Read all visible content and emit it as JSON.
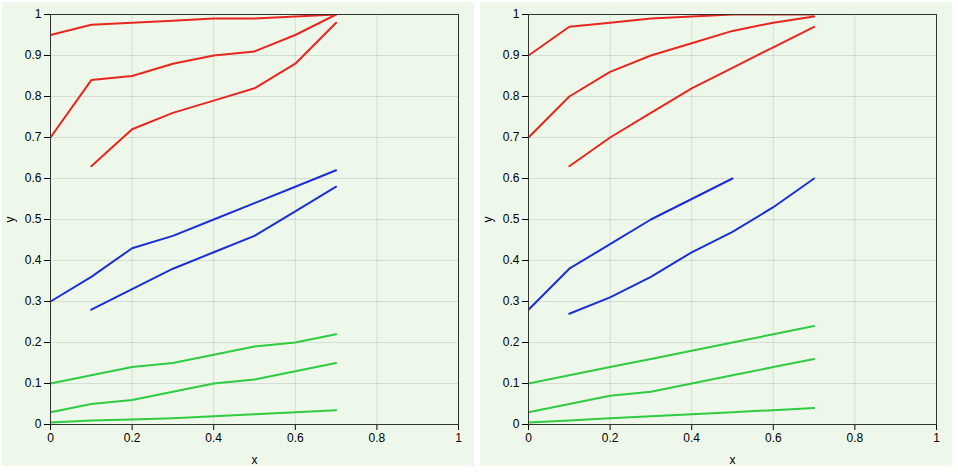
{
  "chart_data": [
    {
      "type": "line",
      "x_label": "x",
      "y_label": "y",
      "x": [
        0,
        0.1,
        0.2,
        0.3,
        0.4,
        0.5,
        0.6,
        0.7
      ],
      "xlim": [
        0,
        1
      ],
      "xticks": [
        0,
        0.2,
        0.4,
        0.6,
        0.8,
        1
      ],
      "ylim": [
        0,
        1
      ],
      "yticks": [
        0,
        0.1,
        0.2,
        0.3,
        0.4,
        0.5,
        0.6,
        0.7,
        0.8,
        0.9,
        1
      ],
      "grid": true,
      "series": [
        {
          "color": "#e8261e",
          "values": [
            0.95,
            0.975,
            0.98,
            0.985,
            0.99,
            0.99,
            0.995,
            1
          ]
        },
        {
          "color": "#e8261e",
          "values": [
            0.7,
            0.84,
            0.85,
            0.88,
            0.9,
            0.91,
            0.95,
            1
          ]
        },
        {
          "color": "#e8261e",
          "values": [
            null,
            0.63,
            0.72,
            0.76,
            0.79,
            0.82,
            0.88,
            0.98
          ]
        },
        {
          "color": "#1a2fd6",
          "values": [
            0.3,
            0.36,
            0.43,
            0.46,
            0.5,
            0.54,
            0.58,
            0.62
          ]
        },
        {
          "color": "#1a2fd6",
          "values": [
            null,
            0.28,
            0.33,
            0.38,
            0.42,
            0.46,
            0.52,
            0.58
          ]
        },
        {
          "color": "#2ecc40",
          "values": [
            0.1,
            0.12,
            0.14,
            0.15,
            0.17,
            0.19,
            0.2,
            0.22
          ]
        },
        {
          "color": "#2ecc40",
          "values": [
            0.03,
            0.05,
            0.06,
            0.08,
            0.1,
            0.11,
            0.13,
            0.15
          ]
        },
        {
          "color": "#2ecc40",
          "values": [
            0.005,
            0.01,
            0.012,
            0.015,
            0.02,
            0.025,
            0.03,
            0.035
          ]
        }
      ]
    },
    {
      "type": "line",
      "x_label": "x",
      "y_label": "y",
      "x": [
        0,
        0.1,
        0.2,
        0.3,
        0.4,
        0.5,
        0.6,
        0.7
      ],
      "xlim": [
        0,
        1
      ],
      "xticks": [
        0,
        0.2,
        0.4,
        0.6,
        0.8,
        1
      ],
      "ylim": [
        0,
        1
      ],
      "yticks": [
        0,
        0.1,
        0.2,
        0.3,
        0.4,
        0.5,
        0.6,
        0.7,
        0.8,
        0.9,
        1
      ],
      "grid": true,
      "series": [
        {
          "color": "#e8261e",
          "values": [
            0.9,
            0.97,
            0.98,
            0.99,
            0.995,
            1,
            1,
            1
          ]
        },
        {
          "color": "#e8261e",
          "values": [
            0.7,
            0.8,
            0.86,
            0.9,
            0.93,
            0.96,
            0.98,
            0.995
          ]
        },
        {
          "color": "#e8261e",
          "values": [
            null,
            0.63,
            0.7,
            0.76,
            0.82,
            0.87,
            0.92,
            0.97
          ]
        },
        {
          "color": "#1a2fd6",
          "values": [
            0.28,
            0.38,
            0.44,
            0.5,
            0.55,
            0.6,
            null,
            null
          ]
        },
        {
          "color": "#1a2fd6",
          "values": [
            null,
            0.27,
            0.31,
            0.36,
            0.42,
            0.47,
            0.53,
            0.6
          ]
        },
        {
          "color": "#2ecc40",
          "values": [
            0.1,
            0.12,
            0.14,
            0.16,
            0.18,
            0.2,
            0.22,
            0.24
          ]
        },
        {
          "color": "#2ecc40",
          "values": [
            0.03,
            0.05,
            0.07,
            0.08,
            0.1,
            0.12,
            0.14,
            0.16
          ]
        },
        {
          "color": "#2ecc40",
          "values": [
            0.005,
            0.01,
            0.015,
            0.02,
            0.025,
            0.03,
            0.035,
            0.04
          ]
        }
      ]
    }
  ]
}
